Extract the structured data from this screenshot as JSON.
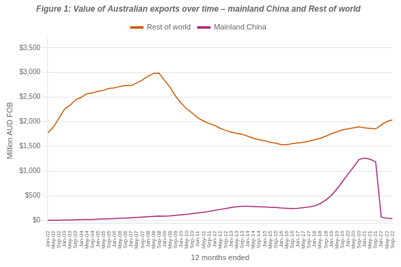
{
  "chart_data": {
    "type": "line",
    "title": "Figure 1: Value of Australian exports over time – mainland China and Rest of world",
    "xlabel": "12 months ended",
    "ylabel": "Million AUD FOB",
    "categories": [
      "Jan-02",
      "May-02",
      "Sep-02",
      "Jan-03",
      "May-03",
      "Sep-03",
      "Jan-04",
      "May-04",
      "Sep-04",
      "Jan-05",
      "May-05",
      "Sep-05",
      "Jan-06",
      "May-06",
      "Sep-06",
      "Jan-07",
      "May-07",
      "Sep-07",
      "Jan-08",
      "May-08",
      "Sep-08",
      "Jan-09",
      "May-09",
      "Sep-09",
      "Jan-10",
      "May-10",
      "Sep-10",
      "Jan-11",
      "May-11",
      "Sep-11",
      "Jan-12",
      "May-12",
      "Sep-12",
      "Jan-13",
      "May-13",
      "Sep-13",
      "Jan-14",
      "May-14",
      "Sep-14",
      "Jan-15",
      "May-15",
      "Sep-15",
      "Jan-16",
      "May-16",
      "Sep-16",
      "Jan-17",
      "May-17",
      "Sep-17",
      "Jan-18",
      "May-18",
      "Sep-18",
      "Jan-19",
      "May-19",
      "Sep-19",
      "Jan-20",
      "May-20",
      "Sep-20",
      "Jan-21",
      "May-21",
      "Sep-21",
      "Jan-22",
      "May-22",
      "Sep-22"
    ],
    "series": [
      {
        "name": "Rest of world",
        "color": "#cc5500",
        "values": [
          1780,
          1900,
          2080,
          2260,
          2340,
          2450,
          2500,
          2570,
          2590,
          2620,
          2640,
          2680,
          2690,
          2720,
          2740,
          2740,
          2790,
          2850,
          2930,
          2980,
          2990,
          2840,
          2700,
          2520,
          2380,
          2260,
          2180,
          2080,
          2020,
          1970,
          1930,
          1870,
          1830,
          1790,
          1770,
          1750,
          1710,
          1670,
          1640,
          1620,
          1590,
          1570,
          1540,
          1540,
          1560,
          1575,
          1590,
          1610,
          1640,
          1670,
          1710,
          1760,
          1800,
          1840,
          1860,
          1880,
          1900,
          1880,
          1870,
          1860,
          1940,
          2010,
          2040
        ]
      },
      {
        "name": "Mainland China",
        "color": "#aa2277",
        "values": [
          8,
          10,
          12,
          14,
          16,
          18,
          20,
          23,
          26,
          30,
          34,
          38,
          43,
          48,
          53,
          60,
          66,
          73,
          80,
          88,
          93,
          92,
          98,
          108,
          118,
          128,
          143,
          158,
          172,
          188,
          208,
          228,
          248,
          268,
          282,
          292,
          291,
          286,
          282,
          278,
          272,
          267,
          257,
          252,
          248,
          252,
          263,
          278,
          298,
          345,
          415,
          510,
          640,
          790,
          940,
          1085,
          1240,
          1270,
          1245,
          1190,
          75,
          50,
          42
        ]
      }
    ],
    "ylim": [
      -50,
      3700
    ],
    "yticks": [
      {
        "value": 0,
        "label": "$0"
      },
      {
        "value": 500,
        "label": "$500"
      },
      {
        "value": 1000,
        "label": "$1,000"
      },
      {
        "value": 1500,
        "label": "$1,500"
      },
      {
        "value": 2000,
        "label": "$2,000"
      },
      {
        "value": 2500,
        "label": "$2,500"
      },
      {
        "value": 3000,
        "label": "$3,000"
      },
      {
        "value": 3500,
        "label": "$3,500"
      }
    ],
    "grid": true,
    "legend": "top"
  }
}
